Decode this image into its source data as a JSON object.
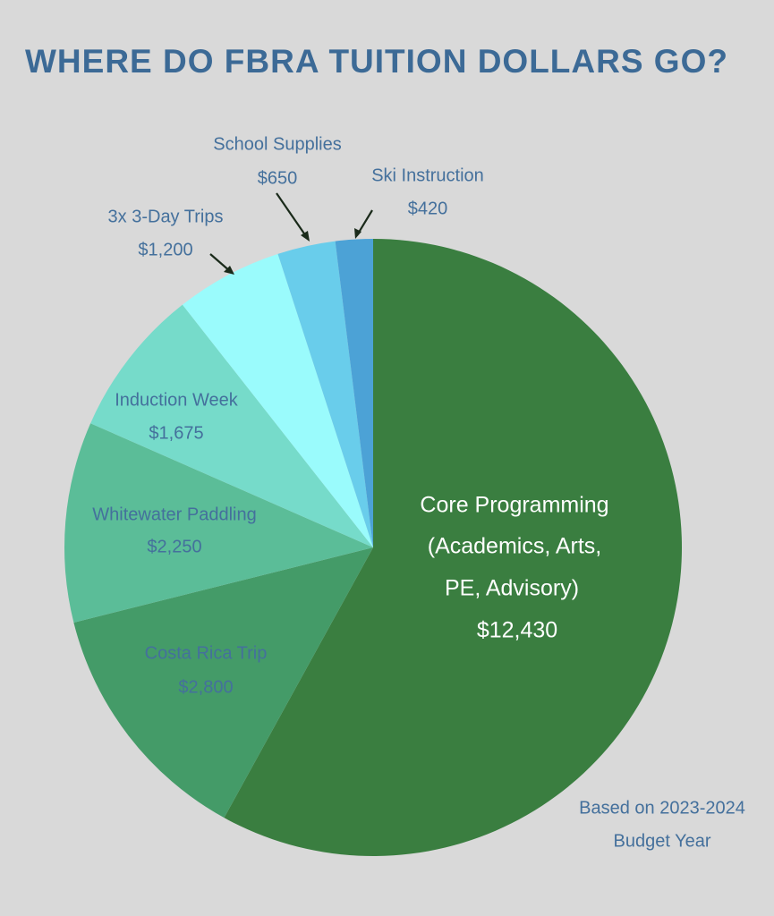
{
  "title": "WHERE DO FBRA TUITION DOLLARS GO?",
  "footnote": [
    "Based on 2023-2024",
    "Budget Year"
  ],
  "chart_data": {
    "type": "pie",
    "title": "WHERE DO FBRA TUITION DOLLARS GO?",
    "start": "top",
    "direction": "clockwise",
    "slices": [
      {
        "label": "Core Programming (Academics, Arts, PE, Advisory)",
        "lines": [
          "Core Programming",
          "(Academics, Arts,",
          "PE, Advisory)",
          "$12,430"
        ],
        "value": 12430,
        "color": "#3a7e40"
      },
      {
        "label": "Costa Rica Trip",
        "lines": [
          "Costa Rica Trip",
          "$2,800"
        ],
        "value": 2800,
        "color": "#449b68"
      },
      {
        "label": "Whitewater Paddling",
        "lines": [
          "Whitewater Paddling",
          "$2,250"
        ],
        "value": 2250,
        "color": "#5bbd98"
      },
      {
        "label": "Induction Week",
        "lines": [
          "Induction Week",
          "$1,675"
        ],
        "value": 1675,
        "color": "#76dbca"
      },
      {
        "label": "3x 3-Day Trips",
        "lines": [
          "3x 3-Day Trips",
          "$1,200"
        ],
        "value": 1200,
        "color": "#9afbfc"
      },
      {
        "label": "School Supplies",
        "lines": [
          "School Supplies",
          "$650"
        ],
        "value": 650,
        "color": "#69cdeb"
      },
      {
        "label": "Ski Instruction",
        "lines": [
          "Ski Instruction",
          "$420"
        ],
        "value": 420,
        "color": "#4ca2d6"
      }
    ]
  }
}
